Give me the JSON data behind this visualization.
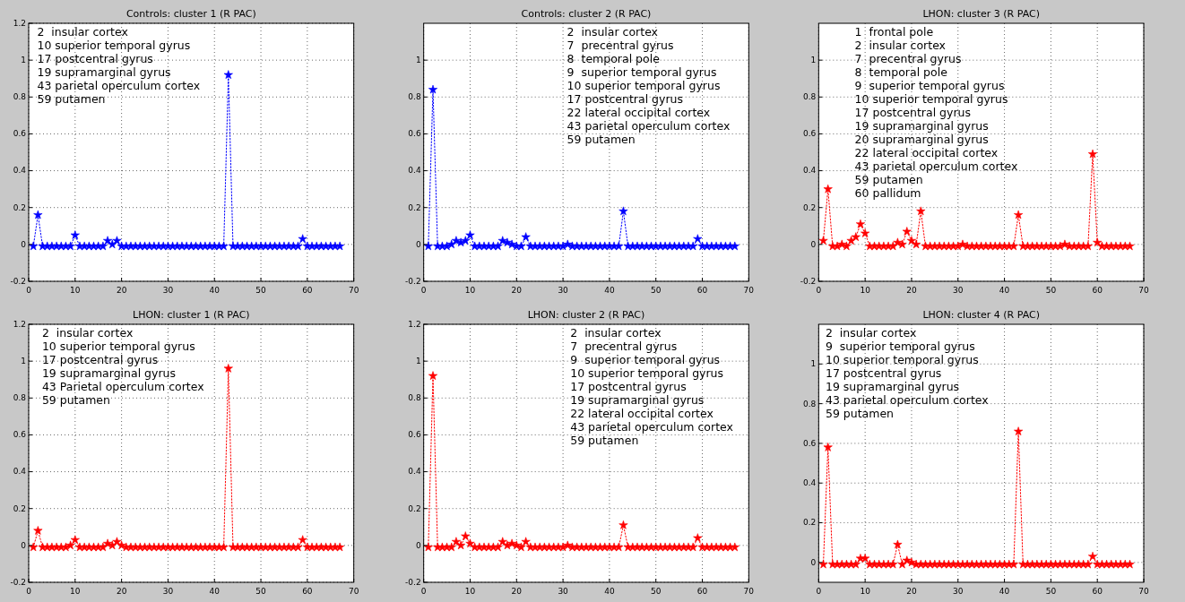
{
  "chart_data": [
    {
      "type": "line",
      "title": "Controls: cluster 1 (R PAC)",
      "marker": "star",
      "line_style": "dotted",
      "grid": true,
      "xlim": [
        0,
        70
      ],
      "ylim": [
        -0.2,
        1.2
      ],
      "xticks": [
        0,
        10,
        20,
        30,
        40,
        50,
        60,
        70
      ],
      "yticks": [
        -0.2,
        0,
        0.2,
        0.4,
        0.6,
        0.8,
        1,
        1.2
      ],
      "annotations": [
        "2  insular cortex",
        "10 superior temporal gyrus",
        "17 postcentral gyrus",
        "19 supramarginal gyrus",
        "43 parietal operculum cortex",
        "59 putamen"
      ],
      "x": [
        1,
        2,
        3,
        4,
        5,
        6,
        7,
        8,
        9,
        10,
        11,
        12,
        13,
        14,
        15,
        16,
        17,
        18,
        19,
        20,
        21,
        22,
        23,
        24,
        25,
        26,
        27,
        28,
        29,
        30,
        31,
        32,
        33,
        34,
        35,
        36,
        37,
        38,
        39,
        40,
        41,
        42,
        43,
        44,
        45,
        46,
        47,
        48,
        49,
        50,
        51,
        52,
        53,
        54,
        55,
        56,
        57,
        58,
        59,
        60,
        61,
        62,
        63,
        64,
        65,
        66,
        67
      ],
      "series": [
        {
          "color": "#0000ff",
          "values": [
            -0.01,
            0.16,
            -0.01,
            -0.01,
            -0.01,
            -0.01,
            -0.01,
            -0.01,
            -0.01,
            0.05,
            -0.01,
            -0.01,
            -0.01,
            -0.01,
            -0.01,
            -0.01,
            0.02,
            0,
            0.02,
            -0.01,
            -0.01,
            -0.01,
            -0.01,
            -0.01,
            -0.01,
            -0.01,
            -0.01,
            -0.01,
            -0.01,
            -0.01,
            -0.01,
            -0.01,
            -0.01,
            -0.01,
            -0.01,
            -0.01,
            -0.01,
            -0.01,
            -0.01,
            -0.01,
            -0.01,
            -0.01,
            0.92,
            -0.01,
            -0.01,
            -0.01,
            -0.01,
            -0.01,
            -0.01,
            -0.01,
            -0.01,
            -0.01,
            -0.01,
            -0.01,
            -0.01,
            -0.01,
            -0.01,
            -0.01,
            0.03,
            -0.01,
            -0.01,
            -0.01,
            -0.01,
            -0.01,
            -0.01,
            -0.01,
            -0.01
          ]
        }
      ]
    },
    {
      "type": "line",
      "title": "Controls: cluster 2 (R PAC)",
      "marker": "star",
      "line_style": "dotted",
      "grid": true,
      "xlim": [
        0,
        70
      ],
      "ylim": [
        -0.2,
        1.2
      ],
      "xticks": [
        0,
        10,
        20,
        30,
        40,
        50,
        60,
        70
      ],
      "yticks": [
        -0.2,
        0,
        0.2,
        0.4,
        0.6,
        0.8,
        1
      ],
      "annotations": [
        "2  insular cortex",
        "7  precentral gyrus",
        "8  temporal pole",
        "9  superior temporal gyrus",
        "10 superior temporal gyrus",
        "17 postcentral gyrus",
        "22 lateral occipital cortex",
        "43 parietal operculum cortex",
        "59 putamen"
      ],
      "x": [
        1,
        2,
        3,
        4,
        5,
        6,
        7,
        8,
        9,
        10,
        11,
        12,
        13,
        14,
        15,
        16,
        17,
        18,
        19,
        20,
        21,
        22,
        23,
        24,
        25,
        26,
        27,
        28,
        29,
        30,
        31,
        32,
        33,
        34,
        35,
        36,
        37,
        38,
        39,
        40,
        41,
        42,
        43,
        44,
        45,
        46,
        47,
        48,
        49,
        50,
        51,
        52,
        53,
        54,
        55,
        56,
        57,
        58,
        59,
        60,
        61,
        62,
        63,
        64,
        65,
        66,
        67
      ],
      "series": [
        {
          "color": "#0000ff",
          "values": [
            -0.01,
            0.84,
            -0.01,
            -0.01,
            -0.01,
            0,
            0.02,
            0.01,
            0.02,
            0.05,
            -0.01,
            -0.01,
            -0.01,
            -0.01,
            -0.01,
            -0.01,
            0.02,
            0.01,
            0,
            -0.01,
            -0.01,
            0.04,
            -0.01,
            -0.01,
            -0.01,
            -0.01,
            -0.01,
            -0.01,
            -0.01,
            -0.01,
            0,
            -0.01,
            -0.01,
            -0.01,
            -0.01,
            -0.01,
            -0.01,
            -0.01,
            -0.01,
            -0.01,
            -0.01,
            -0.01,
            0.18,
            -0.01,
            -0.01,
            -0.01,
            -0.01,
            -0.01,
            -0.01,
            -0.01,
            -0.01,
            -0.01,
            -0.01,
            -0.01,
            -0.01,
            -0.01,
            -0.01,
            -0.01,
            0.03,
            -0.01,
            -0.01,
            -0.01,
            -0.01,
            -0.01,
            -0.01,
            -0.01,
            -0.01
          ]
        }
      ]
    },
    {
      "type": "line",
      "title": "LHON: cluster 3 (R PAC)",
      "marker": "star",
      "line_style": "dotted",
      "grid": true,
      "xlim": [
        0,
        70
      ],
      "ylim": [
        -0.2,
        1.2
      ],
      "xticks": [
        0,
        10,
        20,
        30,
        40,
        50,
        60,
        70
      ],
      "yticks": [
        -0.2,
        0,
        0.2,
        0.4,
        0.6,
        0.8,
        1
      ],
      "annotations": [
        "1  frontal pole",
        "2  insular cortex",
        "7  precentral gyrus",
        "8  temporal pole",
        "9  superior temporal gyrus",
        "10 superior temporal gyrus",
        "17 postcentral gyrus",
        "19 supramarginal gyrus",
        "20 supramarginal gyrus",
        "22 lateral occipital cortex",
        "43 parietal operculum cortex",
        "59 putamen",
        "60 pallidum"
      ],
      "x": [
        1,
        2,
        3,
        4,
        5,
        6,
        7,
        8,
        9,
        10,
        11,
        12,
        13,
        14,
        15,
        16,
        17,
        18,
        19,
        20,
        21,
        22,
        23,
        24,
        25,
        26,
        27,
        28,
        29,
        30,
        31,
        32,
        33,
        34,
        35,
        36,
        37,
        38,
        39,
        40,
        41,
        42,
        43,
        44,
        45,
        46,
        47,
        48,
        49,
        50,
        51,
        52,
        53,
        54,
        55,
        56,
        57,
        58,
        59,
        60,
        61,
        62,
        63,
        64,
        65,
        66,
        67
      ],
      "series": [
        {
          "color": "#ff0000",
          "values": [
            0.02,
            0.3,
            -0.01,
            -0.01,
            0,
            -0.01,
            0.02,
            0.04,
            0.11,
            0.06,
            -0.01,
            -0.01,
            -0.01,
            -0.01,
            -0.01,
            -0.01,
            0.01,
            0,
            0.07,
            0.02,
            0,
            0.18,
            -0.01,
            -0.01,
            -0.01,
            -0.01,
            -0.01,
            -0.01,
            -0.01,
            -0.01,
            0,
            -0.01,
            -0.01,
            -0.01,
            -0.01,
            -0.01,
            -0.01,
            -0.01,
            -0.01,
            -0.01,
            -0.01,
            -0.01,
            0.16,
            -0.01,
            -0.01,
            -0.01,
            -0.01,
            -0.01,
            -0.01,
            -0.01,
            -0.01,
            -0.01,
            0,
            -0.01,
            -0.01,
            -0.01,
            -0.01,
            -0.01,
            0.49,
            0.01,
            -0.01,
            -0.01,
            -0.01,
            -0.01,
            -0.01,
            -0.01,
            -0.01
          ]
        }
      ]
    },
    {
      "type": "line",
      "title": "LHON: cluster 1 (R PAC)",
      "marker": "star",
      "line_style": "dotted",
      "grid": true,
      "xlim": [
        0,
        70
      ],
      "ylim": [
        -0.2,
        1.2
      ],
      "xticks": [
        0,
        10,
        20,
        30,
        40,
        50,
        60,
        70
      ],
      "yticks": [
        -0.2,
        0,
        0.2,
        0.4,
        0.6,
        0.8,
        1,
        1.2
      ],
      "annotations": [
        "2  insular cortex",
        "10 superior temporal gyrus",
        "17 postcentral gyrus",
        "19 supramarginal gyrus",
        "43 Parietal operculum cortex",
        "59 putamen"
      ],
      "x": [
        1,
        2,
        3,
        4,
        5,
        6,
        7,
        8,
        9,
        10,
        11,
        12,
        13,
        14,
        15,
        16,
        17,
        18,
        19,
        20,
        21,
        22,
        23,
        24,
        25,
        26,
        27,
        28,
        29,
        30,
        31,
        32,
        33,
        34,
        35,
        36,
        37,
        38,
        39,
        40,
        41,
        42,
        43,
        44,
        45,
        46,
        47,
        48,
        49,
        50,
        51,
        52,
        53,
        54,
        55,
        56,
        57,
        58,
        59,
        60,
        61,
        62,
        63,
        64,
        65,
        66,
        67
      ],
      "series": [
        {
          "color": "#ff0000",
          "values": [
            -0.01,
            0.08,
            -0.01,
            -0.01,
            -0.01,
            -0.01,
            -0.01,
            -0.01,
            0,
            0.03,
            -0.01,
            -0.01,
            -0.01,
            -0.01,
            -0.01,
            -0.01,
            0.01,
            0,
            0.02,
            0,
            -0.01,
            -0.01,
            -0.01,
            -0.01,
            -0.01,
            -0.01,
            -0.01,
            -0.01,
            -0.01,
            -0.01,
            -0.01,
            -0.01,
            -0.01,
            -0.01,
            -0.01,
            -0.01,
            -0.01,
            -0.01,
            -0.01,
            -0.01,
            -0.01,
            -0.01,
            0.96,
            -0.01,
            -0.01,
            -0.01,
            -0.01,
            -0.01,
            -0.01,
            -0.01,
            -0.01,
            -0.01,
            -0.01,
            -0.01,
            -0.01,
            -0.01,
            -0.01,
            -0.01,
            0.03,
            -0.01,
            -0.01,
            -0.01,
            -0.01,
            -0.01,
            -0.01,
            -0.01,
            -0.01
          ]
        }
      ]
    },
    {
      "type": "line",
      "title": "LHON: cluster 2 (R PAC)",
      "marker": "star",
      "line_style": "dotted",
      "grid": true,
      "xlim": [
        0,
        70
      ],
      "ylim": [
        -0.2,
        1.2
      ],
      "xticks": [
        0,
        10,
        20,
        30,
        40,
        50,
        60,
        70
      ],
      "yticks": [
        -0.2,
        0,
        0.2,
        0.4,
        0.6,
        0.8,
        1,
        1.2
      ],
      "annotations": [
        "2  insular cortex",
        "7  precentral gyrus",
        "9  superior temporal gyrus",
        "10 superior temporal gyrus",
        "17 postcentral gyrus",
        "19 supramarginal gyrus",
        "22 lateral occipital cortex",
        "43 parietal operculum cortex",
        "59 putamen"
      ],
      "x": [
        1,
        2,
        3,
        4,
        5,
        6,
        7,
        8,
        9,
        10,
        11,
        12,
        13,
        14,
        15,
        16,
        17,
        18,
        19,
        20,
        21,
        22,
        23,
        24,
        25,
        26,
        27,
        28,
        29,
        30,
        31,
        32,
        33,
        34,
        35,
        36,
        37,
        38,
        39,
        40,
        41,
        42,
        43,
        44,
        45,
        46,
        47,
        48,
        49,
        50,
        51,
        52,
        53,
        54,
        55,
        56,
        57,
        58,
        59,
        60,
        61,
        62,
        63,
        64,
        65,
        66,
        67
      ],
      "series": [
        {
          "color": "#ff0000",
          "values": [
            -0.01,
            0.92,
            -0.01,
            -0.01,
            -0.01,
            -0.01,
            0.02,
            0,
            0.05,
            0.01,
            -0.01,
            -0.01,
            -0.01,
            -0.01,
            -0.01,
            -0.01,
            0.02,
            0,
            0.01,
            0,
            -0.01,
            0.02,
            -0.01,
            -0.01,
            -0.01,
            -0.01,
            -0.01,
            -0.01,
            -0.01,
            -0.01,
            0,
            -0.01,
            -0.01,
            -0.01,
            -0.01,
            -0.01,
            -0.01,
            -0.01,
            -0.01,
            -0.01,
            -0.01,
            -0.01,
            0.11,
            -0.01,
            -0.01,
            -0.01,
            -0.01,
            -0.01,
            -0.01,
            -0.01,
            -0.01,
            -0.01,
            -0.01,
            -0.01,
            -0.01,
            -0.01,
            -0.01,
            -0.01,
            0.04,
            -0.01,
            -0.01,
            -0.01,
            -0.01,
            -0.01,
            -0.01,
            -0.01,
            -0.01
          ]
        }
      ]
    },
    {
      "type": "line",
      "title": "LHON: cluster 4 (R PAC)",
      "marker": "star",
      "line_style": "dotted",
      "grid": true,
      "xlim": [
        0,
        70
      ],
      "ylim": [
        -0.1,
        1.2
      ],
      "xticks": [
        0,
        10,
        20,
        30,
        40,
        50,
        60,
        70
      ],
      "yticks": [
        0,
        0.2,
        0.4,
        0.6,
        0.8,
        1
      ],
      "annotations": [
        "2  insular cortex",
        "9  superior temporal gyrus",
        "10 superior temporal gyrus",
        "17 postcentral gyrus",
        "19 supramarginal gyrus",
        "43 parietal operculum cortex",
        "59 putamen"
      ],
      "x": [
        1,
        2,
        3,
        4,
        5,
        6,
        7,
        8,
        9,
        10,
        11,
        12,
        13,
        14,
        15,
        16,
        17,
        18,
        19,
        20,
        21,
        22,
        23,
        24,
        25,
        26,
        27,
        28,
        29,
        30,
        31,
        32,
        33,
        34,
        35,
        36,
        37,
        38,
        39,
        40,
        41,
        42,
        43,
        44,
        45,
        46,
        47,
        48,
        49,
        50,
        51,
        52,
        53,
        54,
        55,
        56,
        57,
        58,
        59,
        60,
        61,
        62,
        63,
        64,
        65,
        66,
        67
      ],
      "series": [
        {
          "color": "#ff0000",
          "values": [
            -0.01,
            0.58,
            -0.01,
            -0.01,
            -0.01,
            -0.01,
            -0.01,
            -0.01,
            0.02,
            0.02,
            -0.01,
            -0.01,
            -0.01,
            -0.01,
            -0.01,
            -0.01,
            0.09,
            -0.01,
            0.01,
            0,
            -0.01,
            -0.01,
            -0.01,
            -0.01,
            -0.01,
            -0.01,
            -0.01,
            -0.01,
            -0.01,
            -0.01,
            -0.01,
            -0.01,
            -0.01,
            -0.01,
            -0.01,
            -0.01,
            -0.01,
            -0.01,
            -0.01,
            -0.01,
            -0.01,
            -0.01,
            0.66,
            -0.01,
            -0.01,
            -0.01,
            -0.01,
            -0.01,
            -0.01,
            -0.01,
            -0.01,
            -0.01,
            -0.01,
            -0.01,
            -0.01,
            -0.01,
            -0.01,
            -0.01,
            0.03,
            -0.01,
            -0.01,
            -0.01,
            -0.01,
            -0.01,
            -0.01,
            -0.01,
            -0.01
          ]
        }
      ]
    }
  ]
}
